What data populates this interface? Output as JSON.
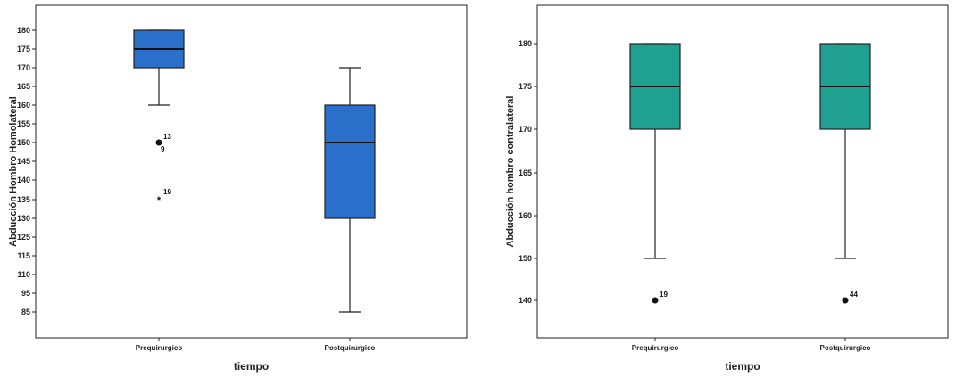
{
  "chart_data": [
    {
      "type": "boxplot",
      "title": "",
      "xlabel": "tiempo",
      "ylabel": "Abducción Hombro Homolateral",
      "categories": [
        "Prequirurgico",
        "Postquirurgico"
      ],
      "y_ticks": [
        85,
        95,
        110,
        115,
        125,
        130,
        135,
        140,
        145,
        150,
        155,
        160,
        165,
        170,
        175,
        180
      ],
      "boxes": [
        {
          "category": "Prequirurgico",
          "min": 160,
          "q1": 170,
          "median": 175,
          "q3": 180,
          "max": 180,
          "outliers": [
            {
              "label": "13",
              "value": 150,
              "marker": "circle"
            },
            {
              "label": "9",
              "value": 150,
              "marker": "circle"
            }
          ],
          "extremes": [
            {
              "label": "19",
              "value": 135,
              "marker": "star"
            }
          ]
        },
        {
          "category": "Postquirurgico",
          "min": 85,
          "q1": 130,
          "median": 150,
          "q3": 160,
          "max": 170,
          "outliers": [],
          "extremes": []
        }
      ],
      "box_color": "#2a6fc9",
      "grid": false
    },
    {
      "type": "boxplot",
      "title": "",
      "xlabel": "tiempo",
      "ylabel": "Abducción hombro contralateral",
      "categories": [
        "Prequirurgico",
        "Postquirurgico"
      ],
      "y_ticks": [
        140,
        150,
        160,
        165,
        170,
        175,
        180
      ],
      "boxes": [
        {
          "category": "Prequirurgico",
          "min": 150,
          "q1": 170,
          "median": 175,
          "q3": 180,
          "max": 180,
          "outliers": [
            {
              "label": "19",
              "value": 140,
              "marker": "circle"
            }
          ],
          "extremes": []
        },
        {
          "category": "Postquirurgico",
          "min": 150,
          "q1": 170,
          "median": 175,
          "q3": 180,
          "max": 180,
          "outliers": [
            {
              "label": "44",
              "value": 140,
              "marker": "circle"
            }
          ],
          "extremes": []
        }
      ],
      "box_color": "#1fa090",
      "grid": false
    }
  ]
}
